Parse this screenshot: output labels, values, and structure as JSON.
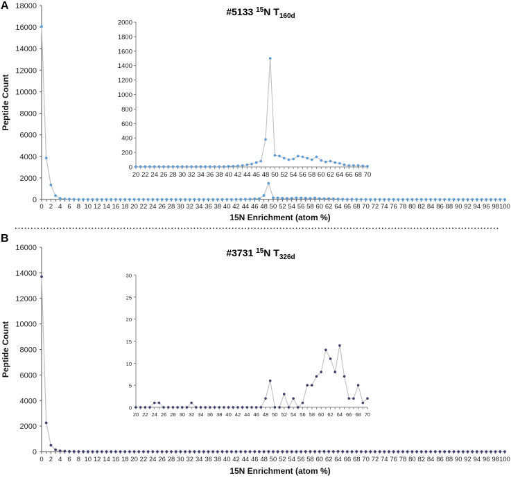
{
  "chart_data": [
    {
      "panel": "A",
      "title_main": "#5133 ",
      "title_sup": "15",
      "title_mid": "N T",
      "title_sub": "160d",
      "type": "line",
      "xlabel": "15N Enrichment (atom %)",
      "ylabel": "Peptide Count",
      "xlim": [
        0,
        100
      ],
      "ylim": [
        0,
        18000
      ],
      "yticks": [
        0,
        2000,
        4000,
        6000,
        8000,
        10000,
        12000,
        14000,
        16000,
        18000
      ],
      "series_color": "#5b9bd5",
      "main": {
        "x": [
          0,
          1,
          2,
          3,
          4,
          5,
          6,
          7,
          8,
          9,
          10,
          11,
          12,
          13,
          14,
          15,
          16,
          17,
          18,
          19,
          20,
          21,
          22,
          23,
          24,
          25,
          26,
          27,
          28,
          29,
          30,
          31,
          32,
          33,
          34,
          35,
          36,
          37,
          38,
          39,
          40,
          41,
          42,
          43,
          44,
          45,
          46,
          47,
          48,
          49,
          50,
          51,
          52,
          53,
          54,
          55,
          56,
          57,
          58,
          59,
          60,
          61,
          62,
          63,
          64,
          65,
          66,
          67,
          68,
          69,
          70,
          71,
          72,
          73,
          74,
          75,
          76,
          77,
          78,
          79,
          80,
          81,
          82,
          83,
          84,
          85,
          86,
          87,
          88,
          89,
          90,
          91,
          92,
          93,
          94,
          95,
          96,
          97,
          98,
          99,
          100
        ],
        "y": [
          16050,
          3850,
          1350,
          350,
          100,
          50,
          30,
          20,
          10,
          5,
          5,
          5,
          5,
          5,
          5,
          5,
          5,
          5,
          5,
          5,
          5,
          5,
          5,
          5,
          5,
          5,
          5,
          5,
          5,
          5,
          5,
          5,
          5,
          5,
          5,
          5,
          5,
          5,
          5,
          5,
          10,
          10,
          15,
          20,
          30,
          40,
          60,
          80,
          380,
          1500,
          160,
          150,
          120,
          100,
          110,
          150,
          140,
          120,
          100,
          140,
          90,
          70,
          80,
          60,
          50,
          30,
          20,
          20,
          20,
          15,
          10,
          5,
          5,
          5,
          5,
          5,
          5,
          5,
          5,
          5,
          5,
          5,
          5,
          5,
          5,
          5,
          5,
          5,
          5,
          5,
          5,
          5,
          5,
          5,
          5,
          5,
          5,
          5,
          5,
          5,
          5
        ]
      },
      "inset": {
        "xlim": [
          20,
          70
        ],
        "ylim": [
          0,
          2000
        ],
        "yticks": [
          0,
          200,
          400,
          600,
          800,
          1000,
          1200,
          1400,
          1600,
          1800,
          2000
        ],
        "x": [
          20,
          21,
          22,
          23,
          24,
          25,
          26,
          27,
          28,
          29,
          30,
          31,
          32,
          33,
          34,
          35,
          36,
          37,
          38,
          39,
          40,
          41,
          42,
          43,
          44,
          45,
          46,
          47,
          48,
          49,
          50,
          51,
          52,
          53,
          54,
          55,
          56,
          57,
          58,
          59,
          60,
          61,
          62,
          63,
          64,
          65,
          66,
          67,
          68,
          69,
          70
        ],
        "y": [
          5,
          5,
          5,
          5,
          5,
          5,
          5,
          5,
          5,
          5,
          5,
          5,
          5,
          5,
          5,
          5,
          5,
          5,
          5,
          5,
          10,
          10,
          15,
          20,
          30,
          40,
          60,
          80,
          380,
          1500,
          160,
          150,
          120,
          100,
          110,
          150,
          140,
          120,
          100,
          140,
          90,
          70,
          80,
          60,
          50,
          30,
          20,
          20,
          20,
          15,
          10
        ]
      }
    },
    {
      "panel": "B",
      "title_main": "#3731 ",
      "title_sup": "15",
      "title_mid": "N T",
      "title_sub": "326d",
      "type": "line",
      "xlabel": "15N Enrichment (atom %)",
      "ylabel": "Peptide Count",
      "xlim": [
        0,
        100
      ],
      "ylim": [
        0,
        16000
      ],
      "yticks": [
        0,
        2000,
        4000,
        6000,
        8000,
        10000,
        12000,
        14000,
        16000
      ],
      "series_color": "#3f3f6e",
      "main": {
        "x": [
          0,
          1,
          2,
          3,
          4,
          5,
          6,
          7,
          8,
          9,
          10,
          11,
          12,
          13,
          14,
          15,
          16,
          17,
          18,
          19,
          20,
          21,
          22,
          23,
          24,
          25,
          26,
          27,
          28,
          29,
          30,
          31,
          32,
          33,
          34,
          35,
          36,
          37,
          38,
          39,
          40,
          41,
          42,
          43,
          44,
          45,
          46,
          47,
          48,
          49,
          50,
          51,
          52,
          53,
          54,
          55,
          56,
          57,
          58,
          59,
          60,
          61,
          62,
          63,
          64,
          65,
          66,
          67,
          68,
          69,
          70,
          71,
          72,
          73,
          74,
          75,
          76,
          77,
          78,
          79,
          80,
          81,
          82,
          83,
          84,
          85,
          86,
          87,
          88,
          89,
          90,
          91,
          92,
          93,
          94,
          95,
          96,
          97,
          98,
          99,
          100
        ],
        "y": [
          13700,
          2250,
          500,
          150,
          60,
          30,
          15,
          10,
          5,
          3,
          2,
          1,
          1,
          1,
          1,
          1,
          1,
          1,
          1,
          1,
          0,
          0,
          0,
          0,
          1,
          1,
          0,
          0,
          0,
          0,
          0,
          0,
          1,
          0,
          0,
          0,
          0,
          0,
          0,
          0,
          0,
          0,
          0,
          0,
          0,
          0,
          0,
          0,
          2,
          6,
          0,
          0,
          3,
          0,
          2,
          0,
          1,
          5,
          5,
          7,
          8,
          13,
          11,
          8,
          14,
          7,
          2,
          2,
          5,
          1,
          2,
          1,
          1,
          0,
          0,
          0,
          0,
          0,
          0,
          0,
          0,
          0,
          0,
          0,
          0,
          0,
          0,
          0,
          0,
          0,
          0,
          0,
          0,
          0,
          0,
          0,
          0,
          0,
          0,
          0,
          0
        ]
      },
      "inset": {
        "xlim": [
          20,
          70
        ],
        "ylim": [
          0,
          30
        ],
        "yticks": [
          0,
          5,
          10,
          15,
          20,
          25,
          30
        ],
        "x": [
          20,
          21,
          22,
          23,
          24,
          25,
          26,
          27,
          28,
          29,
          30,
          31,
          32,
          33,
          34,
          35,
          36,
          37,
          38,
          39,
          40,
          41,
          42,
          43,
          44,
          45,
          46,
          47,
          48,
          49,
          50,
          51,
          52,
          53,
          54,
          55,
          56,
          57,
          58,
          59,
          60,
          61,
          62,
          63,
          64,
          65,
          66,
          67,
          68,
          69,
          70
        ],
        "y": [
          0,
          0,
          0,
          0,
          1,
          1,
          0,
          0,
          0,
          0,
          0,
          0,
          1,
          0,
          0,
          0,
          0,
          0,
          0,
          0,
          0,
          0,
          0,
          0,
          0,
          0,
          0,
          0,
          2,
          6,
          0,
          0,
          3,
          0,
          2,
          0,
          1,
          5,
          5,
          7,
          8,
          13,
          11,
          8,
          14,
          7,
          2,
          2,
          5,
          1,
          2
        ]
      }
    }
  ]
}
